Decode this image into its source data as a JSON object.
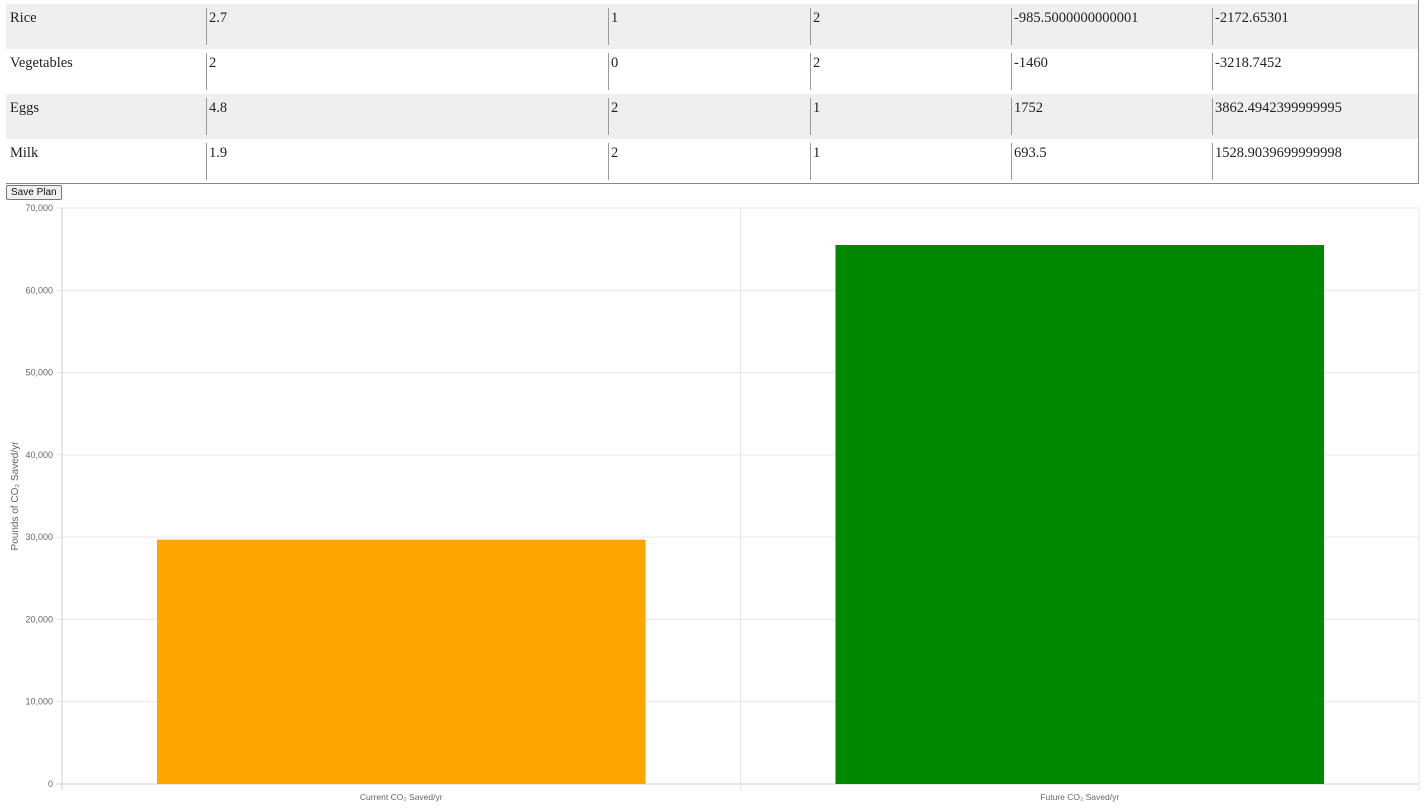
{
  "table": {
    "rows": [
      {
        "food": "Rice",
        "v1": "2.7",
        "v2": "1",
        "v3": "2",
        "v4": "-985.5000000000001",
        "v5": "-2172.65301"
      },
      {
        "food": "Vegetables",
        "v1": "2",
        "v2": "0",
        "v3": "2",
        "v4": "-1460",
        "v5": "-3218.7452"
      },
      {
        "food": "Eggs",
        "v1": "4.8",
        "v2": "2",
        "v3": "1",
        "v4": "1752",
        "v5": "3862.4942399999995"
      },
      {
        "food": "Milk",
        "v1": "1.9",
        "v2": "2",
        "v3": "1",
        "v4": "693.5",
        "v5": "1528.9039699999998"
      }
    ]
  },
  "save_label": "Save Plan",
  "chart_data": {
    "type": "bar",
    "categories": [
      "Current CO₂ Saved/yr",
      "Future CO₂ Saved/yr"
    ],
    "values": [
      29700,
      65500
    ],
    "colors": [
      "#ffa500",
      "#008800"
    ],
    "ylabel": "Pounds of CO₂ Saved/yr",
    "ylim": [
      0,
      70000
    ],
    "yticks": [
      "0",
      "10,000",
      "20,000",
      "30,000",
      "40,000",
      "50,000",
      "60,000",
      "70,000"
    ],
    "grid": true
  }
}
